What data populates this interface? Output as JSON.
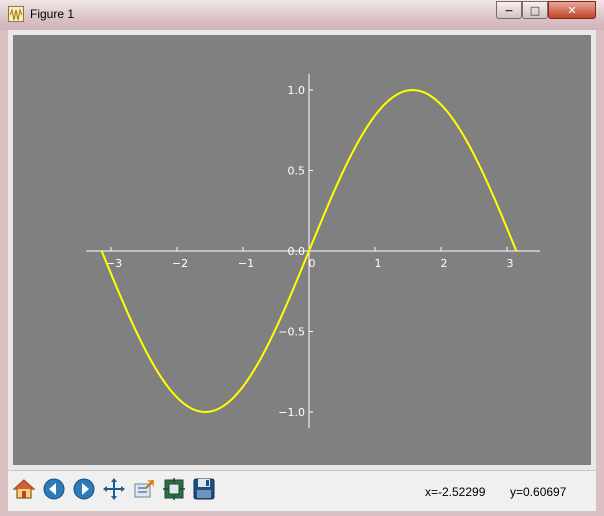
{
  "window": {
    "title": "Figure 1",
    "controls": {
      "minimize": "−",
      "maximize": "□",
      "close": "✕"
    }
  },
  "toolbar": {
    "buttons": [
      "home-icon",
      "back-arrow-icon",
      "forward-arrow-icon",
      "pan-move-icon",
      "zoom-to-rect-icon",
      "configure-subplots-icon",
      "save-icon"
    ]
  },
  "status": {
    "x_readout": "x=-2.52299",
    "y_readout": "y=0.60697"
  },
  "chart_data": {
    "type": "line",
    "title": "",
    "xlabel": "",
    "ylabel": "",
    "xlim": [
      -3.3,
      3.5
    ],
    "ylim": [
      -1.1,
      1.1
    ],
    "xticks": [
      -3,
      -2,
      -1,
      0,
      1,
      2,
      3
    ],
    "xtick_labels": [
      "−3",
      "−2",
      "−1",
      "0",
      "1",
      "2",
      "3"
    ],
    "yticks": [
      -1.0,
      -0.5,
      0.0,
      0.5,
      1.0
    ],
    "ytick_labels": [
      "−1.0",
      "−0.5",
      "0.0",
      "0.5",
      "1.0"
    ],
    "spines": "centered at origin",
    "background_color": "#808080",
    "axis_color": "#ffffff",
    "series": [
      {
        "function": "sin(x)",
        "color": "#ffff00",
        "x": [
          -3.1416,
          -2.7489,
          -2.3562,
          -1.9635,
          -1.5708,
          -1.1781,
          -0.7854,
          -0.3927,
          0.0,
          0.3927,
          0.7854,
          1.1781,
          1.5708,
          1.9635,
          2.3562,
          2.7489,
          3.1416
        ],
        "y": [
          0.0,
          -0.3827,
          -0.7071,
          -0.9239,
          -1.0,
          -0.9239,
          -0.7071,
          -0.3827,
          0.0,
          0.3827,
          0.7071,
          0.9239,
          1.0,
          0.9239,
          0.7071,
          0.3827,
          0.0
        ]
      }
    ]
  }
}
